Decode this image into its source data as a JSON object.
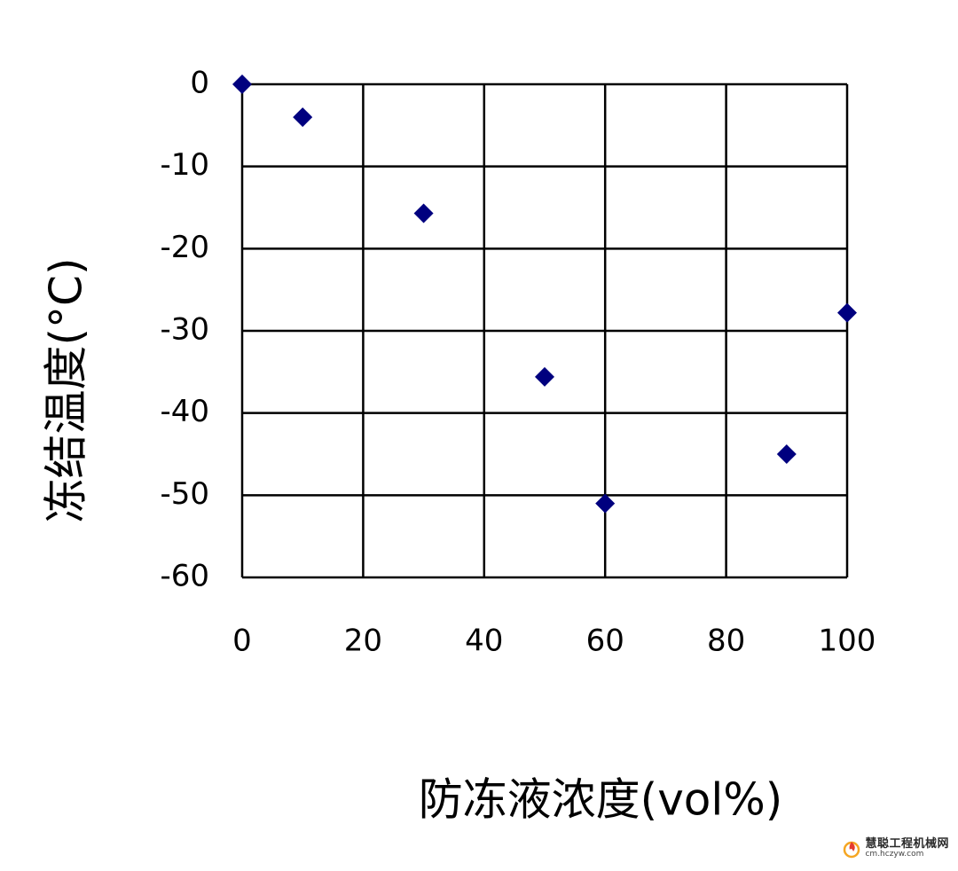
{
  "chart_data": {
    "type": "scatter",
    "xlabel": "防冻液浓度(vol%)",
    "ylabel": "冻结温度(°C)",
    "xlim": [
      0,
      100
    ],
    "ylim": [
      -60,
      0
    ],
    "x_ticks": [
      0,
      20,
      40,
      60,
      80,
      100
    ],
    "y_ticks": [
      0,
      -10,
      -20,
      -30,
      -40,
      -50,
      -60
    ],
    "x_tick_labels": [
      "0",
      "20",
      "40",
      "60",
      "80",
      "100"
    ],
    "y_tick_labels": [
      "0",
      "-10",
      "-20",
      "-30",
      "-40",
      "-50",
      "-60"
    ],
    "grid": true,
    "marker": "diamond",
    "marker_color": "#00007f",
    "points": [
      {
        "x": 0,
        "y": 0
      },
      {
        "x": 10,
        "y": -4
      },
      {
        "x": 30,
        "y": -15.7
      },
      {
        "x": 50,
        "y": -35.6
      },
      {
        "x": 60,
        "y": -51
      },
      {
        "x": 90,
        "y": -45
      },
      {
        "x": 100,
        "y": -27.8
      }
    ]
  },
  "watermark": {
    "name": "慧聪工程机械网",
    "url": "cm.hczyw.com",
    "logo_colors": [
      "#e63b2e",
      "#f5a623"
    ]
  }
}
